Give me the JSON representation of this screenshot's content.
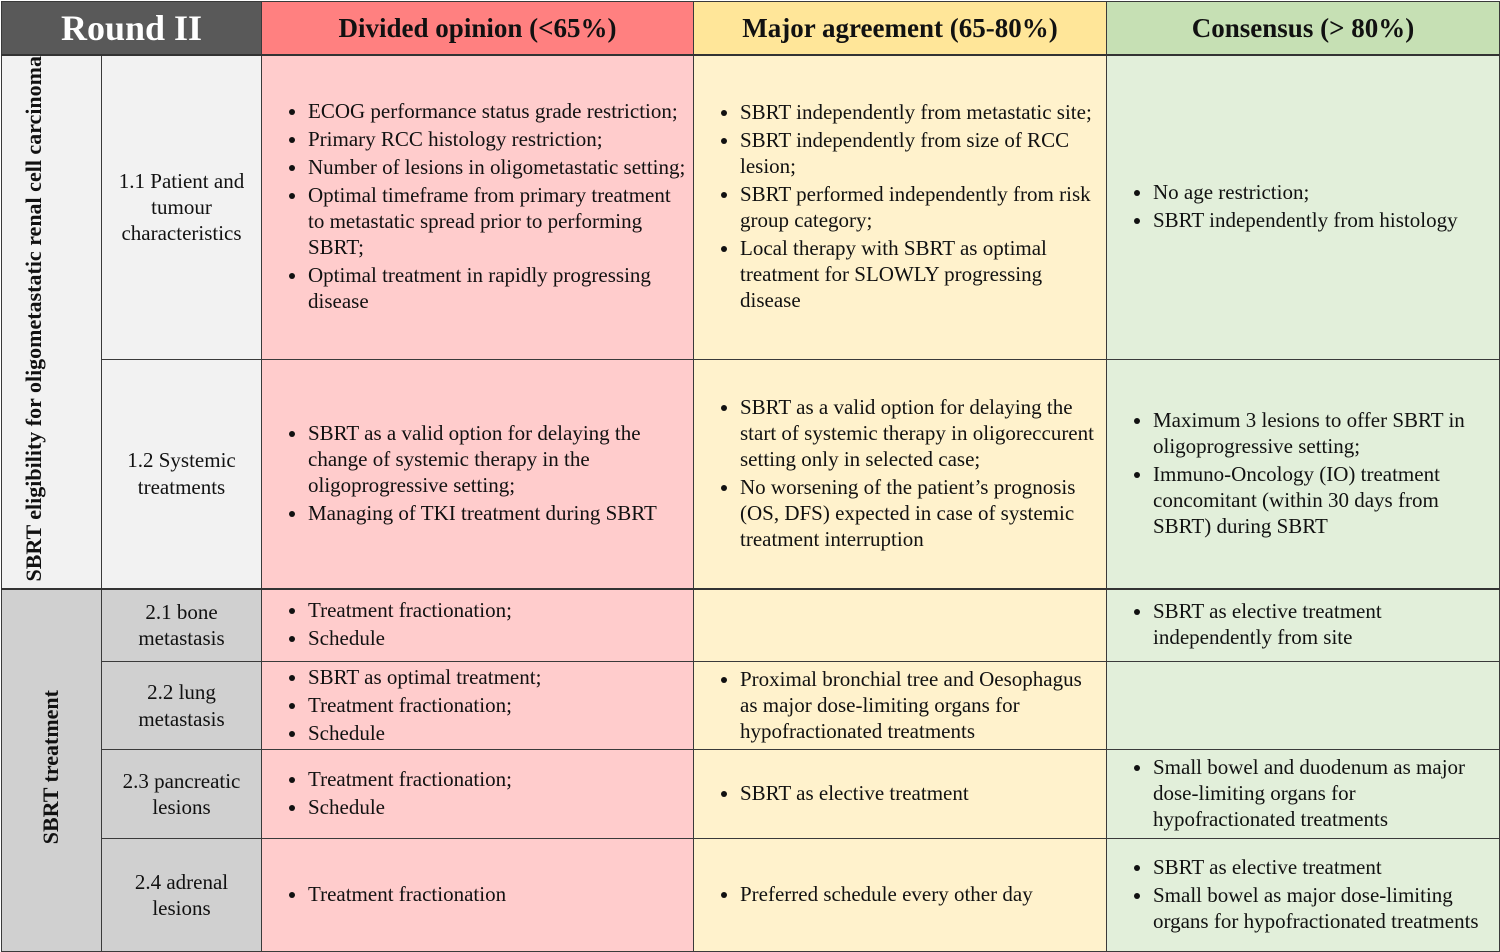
{
  "header": {
    "round": "Round II",
    "divided": "Divided opinion (<65%)",
    "major": "Major agreement (65-80%)",
    "consensus": "Consensus (> 80%)"
  },
  "categories": {
    "eligibility": "SBRT eligibility for oligometastatic renal cell carcinoma",
    "treatment": "SBRT treatment"
  },
  "rows": [
    {
      "label": "1.1 Patient and tumour characteristics",
      "divided": [
        "ECOG performance status grade restriction;",
        "Primary RCC histology restriction;",
        "Number of lesions in oligometastatic setting;",
        "Optimal timeframe from primary treatment to metastatic spread prior to performing SBRT;",
        "Optimal treatment in rapidly progressing disease"
      ],
      "major": [
        "SBRT independently from metastatic site;",
        "SBRT independently from size of RCC lesion;",
        "SBRT performed independently from risk group category;",
        "Local therapy with SBRT as optimal treatment for SLOWLY progressing disease"
      ],
      "consensus": [
        "No age restriction;",
        "SBRT independently from histology"
      ]
    },
    {
      "label": "1.2 Systemic treatments",
      "divided": [
        "SBRT as a valid option for delaying the change of systemic therapy in the oligoprogressive setting;",
        "Managing of TKI treatment during SBRT"
      ],
      "major": [
        "SBRT as a valid option for delaying the start of systemic therapy in oligoreccurent setting only in selected case;",
        "No worsening of the patient’s prognosis (OS, DFS) expected in case of systemic treatment interruption"
      ],
      "consensus": [
        "Maximum 3 lesions to offer SBRT in oligoprogressive setting;",
        "Immuno-Oncology (IO) treatment concomitant (within 30 days from SBRT) during SBRT"
      ]
    },
    {
      "label": "2.1 bone metastasis",
      "divided": [
        "Treatment fractionation;",
        "Schedule"
      ],
      "major": [],
      "consensus": [
        "SBRT as elective treatment independently from site"
      ]
    },
    {
      "label": "2.2 lung metastasis",
      "divided": [
        "SBRT as optimal treatment;",
        "Treatment fractionation;",
        "Schedule"
      ],
      "major": [
        "Proximal bronchial tree and Oesophagus as major dose-limiting organs for hypofractionated treatments"
      ],
      "consensus": []
    },
    {
      "label": "2.3 pancreatic lesions",
      "divided": [
        "Treatment fractionation;",
        "Schedule"
      ],
      "major": [
        "SBRT as elective treatment"
      ],
      "consensus": [
        "Small bowel and duodenum as major dose-limiting organs for hypofractionated treatments"
      ]
    },
    {
      "label": "2.4 adrenal lesions",
      "divided": [
        "Treatment fractionation"
      ],
      "major": [
        "Preferred schedule every other day"
      ],
      "consensus": [
        "SBRT as elective treatment",
        "Small bowel as major dose-limiting organs for hypofractionated treatments"
      ]
    }
  ]
}
